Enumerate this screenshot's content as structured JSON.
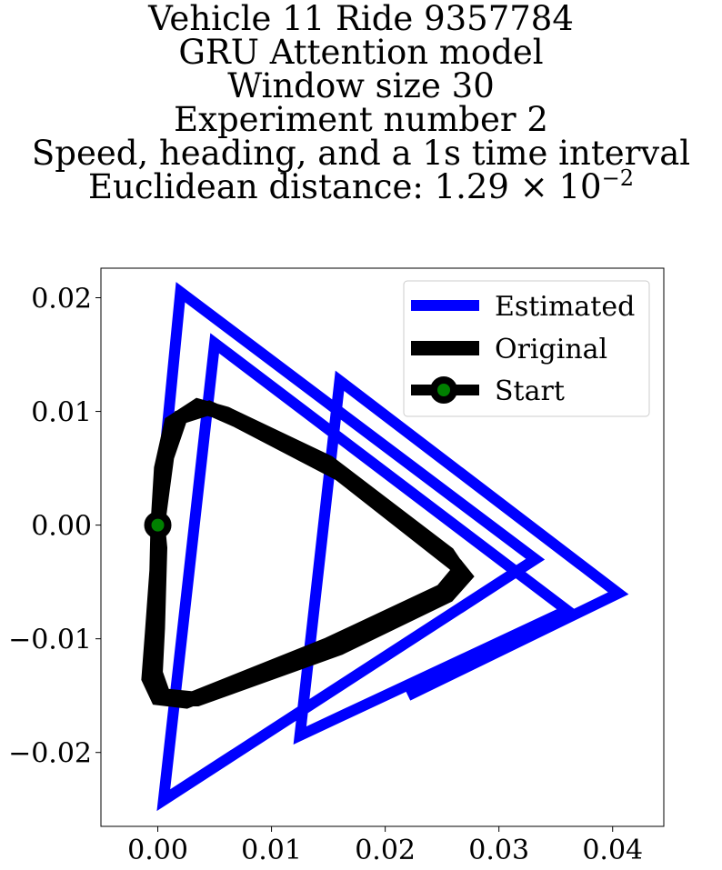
{
  "chart_data": {
    "type": "line",
    "title_lines": [
      "Vehicle 11 Ride 9357784",
      "GRU Attention model",
      "Window size 30",
      "Experiment number 2",
      "Speed, heading, and a 1s time interval"
    ],
    "title_distance_prefix": "Euclidean distance: 1.29 × 10",
    "title_distance_exponent": "−2",
    "xlabel": "",
    "ylabel": "",
    "xlim": [
      -0.005,
      0.0445
    ],
    "ylim": [
      -0.0265,
      0.0226
    ],
    "xticks": [
      0.0,
      0.01,
      0.02,
      0.03,
      0.04
    ],
    "xtick_labels": [
      "0.00",
      "0.01",
      "0.02",
      "0.03",
      "0.04"
    ],
    "yticks": [
      0.02,
      0.01,
      0.0,
      -0.01,
      -0.02
    ],
    "ytick_labels": [
      "0.02",
      "0.01",
      "0.00",
      "−0.01",
      "−0.02"
    ],
    "grid": false,
    "legend_position": "top-right",
    "legend": [
      "Estimated",
      "Original",
      "Start"
    ],
    "series": [
      {
        "name": "Estimated",
        "color": "#0000ff",
        "points": [
          [
            0.0,
            0.0
          ],
          [
            0.002,
            0.0205
          ],
          [
            0.0332,
            -0.003
          ],
          [
            0.0005,
            -0.0242
          ],
          [
            0.005,
            0.016
          ],
          [
            0.036,
            -0.0075
          ],
          [
            0.0125,
            -0.0185
          ],
          [
            0.016,
            0.0127
          ],
          [
            0.0405,
            -0.006
          ],
          [
            0.022,
            -0.015
          ]
        ]
      },
      {
        "name": "Original",
        "color": "#000000",
        "points": [
          [
            0.0,
            0.0
          ],
          [
            0.0003,
            0.005
          ],
          [
            0.0012,
            0.009
          ],
          [
            0.0035,
            0.0105
          ],
          [
            0.006,
            0.0098
          ],
          [
            0.015,
            0.0055
          ],
          [
            0.0255,
            -0.0025
          ],
          [
            0.0265,
            -0.004
          ],
          [
            0.025,
            -0.0058
          ],
          [
            0.015,
            -0.0105
          ],
          [
            0.0025,
            -0.0155
          ],
          [
            0.0,
            -0.0152
          ],
          [
            -0.0008,
            -0.0135
          ],
          [
            -0.0005,
            -0.0095
          ],
          [
            -0.0001,
            -0.004
          ],
          [
            0.0,
            0.0
          ],
          [
            0.0008,
            0.006
          ],
          [
            0.002,
            0.0095
          ],
          [
            0.0045,
            0.0103
          ],
          [
            0.007,
            0.0092
          ],
          [
            0.016,
            0.0045
          ],
          [
            0.0262,
            -0.0035
          ],
          [
            0.027,
            -0.0045
          ],
          [
            0.0255,
            -0.0062
          ],
          [
            0.016,
            -0.0108
          ],
          [
            0.0035,
            -0.0153
          ],
          [
            0.0005,
            -0.015
          ],
          [
            -0.0002,
            -0.013
          ],
          [
            0.0,
            -0.009
          ],
          [
            0.0002,
            -0.002
          ],
          [
            0.0,
            0.0
          ]
        ]
      }
    ],
    "start_point": {
      "name": "Start",
      "x": 0.0,
      "y": 0.0,
      "color": "#008000",
      "edge_color": "#000000"
    }
  }
}
